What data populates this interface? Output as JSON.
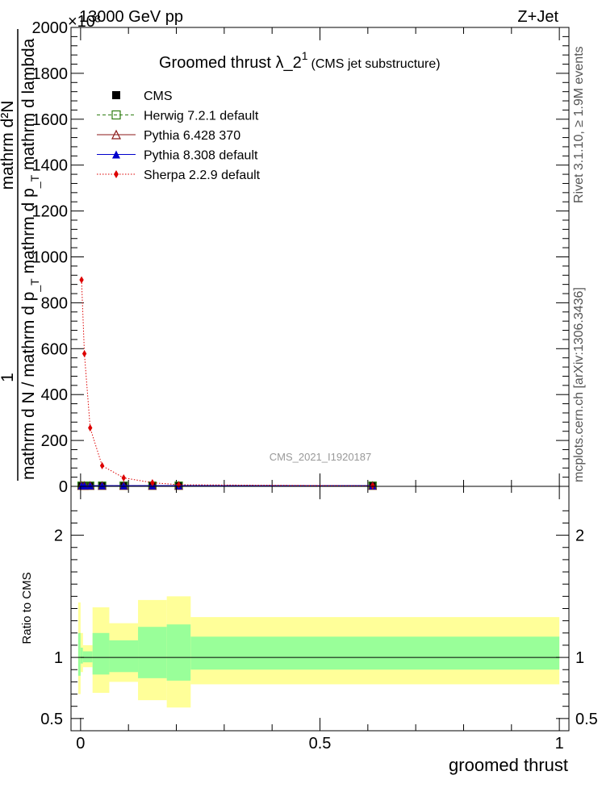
{
  "header": {
    "left": "13000 GeV pp",
    "right": "Z+Jet",
    "exponent": "×10³"
  },
  "side_labels": {
    "rivet": "Rivet 3.1.10, ≥ 1.9M events",
    "mcplots": "mcplots.cern.ch [arXiv:1306.3436]"
  },
  "watermark": "CMS_2021_I1920187",
  "chart_data": [
    {
      "type": "line",
      "title_main": "Groomed thrust  λ_2",
      "title_sup": "1",
      "title_sub": "(CMS jet substructure)",
      "ylabel_num_parts": [
        "1",
        "mathrm d²N"
      ],
      "ylabel_den_parts": [
        "mathrm d N / mathrm d p",
        "_T",
        "mathrm d p",
        "_T",
        "mathrm d lambda"
      ],
      "xlabel": "groomed thrust",
      "xlim": [
        -0.02,
        1.02
      ],
      "ylim": [
        0,
        2000
      ],
      "yticks": [
        0,
        200,
        400,
        600,
        800,
        1000,
        1200,
        1400,
        1600,
        1800,
        2000
      ],
      "xticks": [
        0,
        0.5,
        1
      ],
      "xtick_labels": [
        "0",
        "0.5",
        "1"
      ],
      "legend_position": "top-left",
      "x": [
        0.002,
        0.008,
        0.02,
        0.045,
        0.09,
        0.15,
        0.205,
        0.61
      ],
      "series": [
        {
          "name": "CMS",
          "marker": "square-filled",
          "color": "#000000",
          "values": [
            4,
            4,
            4,
            4,
            4,
            4,
            4,
            4
          ]
        },
        {
          "name": "Herwig 7.2.1 default",
          "marker": "square-open",
          "color": "#2e7d12",
          "dash": "dashed",
          "values": [
            3,
            3,
            3,
            3,
            3,
            3,
            3,
            3
          ]
        },
        {
          "name": "Pythia 6.428 370",
          "marker": "triangle-open",
          "color": "#8b1a1a",
          "dash": "solid",
          "values": [
            3,
            3,
            3,
            3,
            3,
            3,
            3,
            3
          ]
        },
        {
          "name": "Pythia 8.308 default",
          "marker": "triangle-filled",
          "color": "#0000cc",
          "dash": "solid",
          "values": [
            3,
            3,
            3,
            3,
            3,
            3,
            3,
            3
          ]
        },
        {
          "name": "Sherpa 2.2.9 default",
          "marker": "diamond-filled",
          "color": "#dd0000",
          "dash": "dotted",
          "values": [
            900,
            578,
            255,
            90,
            37,
            16,
            7,
            2
          ]
        }
      ]
    },
    {
      "type": "area",
      "ylabel": "Ratio to CMS",
      "ylim": [
        0.4,
        2.4
      ],
      "yticks": [
        0.5,
        1,
        2
      ],
      "ytick_labels": [
        "0.5",
        "1",
        "2"
      ],
      "reference_line": 1,
      "bands": [
        {
          "x0": -0.005,
          "x1": 0.0,
          "yellow": [
            0.7,
            1.45
          ],
          "green": [
            0.85,
            1.2
          ]
        },
        {
          "x0": 0.0,
          "x1": 0.005,
          "yellow": [
            0.88,
            1.2
          ],
          "green": [
            0.95,
            1.08
          ]
        },
        {
          "x0": 0.005,
          "x1": 0.025,
          "yellow": [
            0.92,
            1.1
          ],
          "green": [
            0.96,
            1.05
          ]
        },
        {
          "x0": 0.025,
          "x1": 0.06,
          "yellow": [
            0.71,
            1.41
          ],
          "green": [
            0.86,
            1.2
          ]
        },
        {
          "x0": 0.06,
          "x1": 0.12,
          "yellow": [
            0.8,
            1.28
          ],
          "green": [
            0.88,
            1.14
          ]
        },
        {
          "x0": 0.12,
          "x1": 0.18,
          "yellow": [
            0.65,
            1.47
          ],
          "green": [
            0.83,
            1.25
          ]
        },
        {
          "x0": 0.18,
          "x1": 0.23,
          "yellow": [
            0.59,
            1.5
          ],
          "green": [
            0.81,
            1.27
          ]
        },
        {
          "x0": 0.23,
          "x1": 1.0,
          "yellow": [
            0.78,
            1.33
          ],
          "green": [
            0.9,
            1.17
          ]
        }
      ]
    }
  ]
}
